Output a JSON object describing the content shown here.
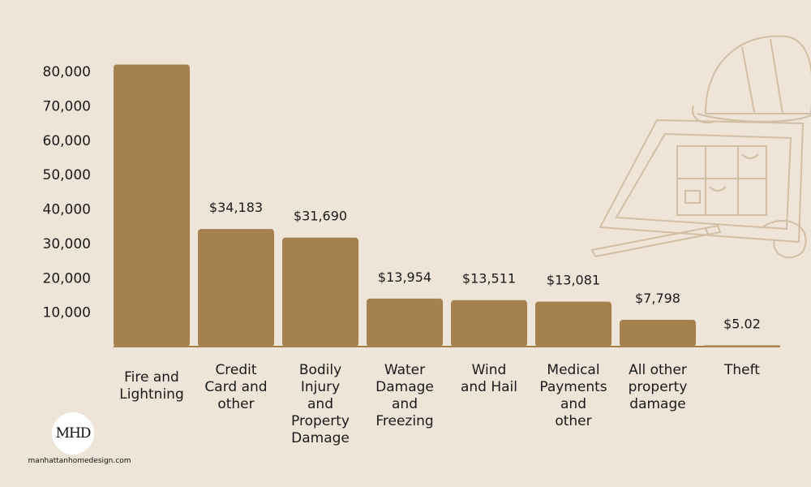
{
  "chart_data": {
    "type": "bar",
    "categories": [
      [
        "Fire and",
        "Lightning"
      ],
      [
        "Credit",
        "Card and",
        "other"
      ],
      [
        "Bodily",
        "Injury",
        "and",
        "Property",
        "Damage"
      ],
      [
        "Water",
        "Damage",
        "and",
        "Freezing"
      ],
      [
        "Wind",
        "and Hail"
      ],
      [
        "Medical",
        "Payments",
        "and",
        "other"
      ],
      [
        "All other",
        "property",
        "damage"
      ],
      [
        "Theft"
      ]
    ],
    "values": [
      82000,
      34183,
      31690,
      13954,
      13511,
      13081,
      7798,
      5.02
    ],
    "data_labels": [
      "",
      "$34,183",
      "$31,690",
      "$13,954",
      "$13,511",
      "$13,081",
      "$7,798",
      "$5.02"
    ],
    "yticks": [
      "10,000",
      "20,000",
      "30,000",
      "40,000",
      "50,000",
      "60,000",
      "70,000",
      "80,000"
    ],
    "ytick_values": [
      10000,
      20000,
      30000,
      40000,
      50000,
      60000,
      70000,
      80000
    ],
    "ylim": [
      0,
      80000
    ],
    "bar_color": "#a58150",
    "baseline_color": "#a58150",
    "grid": false
  },
  "brand": {
    "logo_text": "MHD",
    "website": "manhattanhomedesign.com"
  },
  "decoration": {
    "illustration": "hard-hat-and-blueprint-sketch-icon",
    "line_color": "#d2bea4"
  }
}
